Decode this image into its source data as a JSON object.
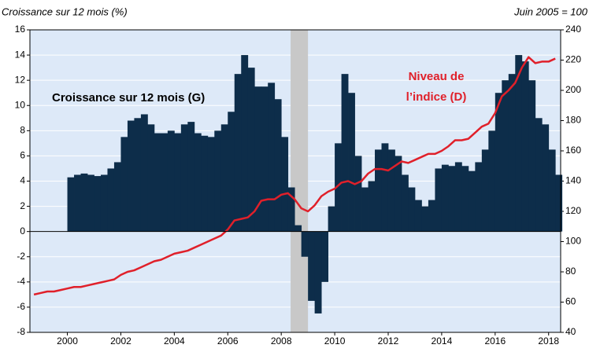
{
  "chart_data": {
    "type": "bar-line",
    "title": "Croissance sur  12 mois (%)",
    "y2_title": "Juin 2005 = 100",
    "annotations": [
      {
        "text": "Croissance sur 12 mois (G)",
        "color": "#000000"
      },
      {
        "lines": [
          "Niveau de",
          "l’indice (D)"
        ],
        "color": "#e0202a"
      }
    ],
    "shade": [
      2008.35,
      2009.0
    ],
    "xlim": [
      1998.6,
      2018.45
    ],
    "xticks": [
      2000,
      2002,
      2004,
      2006,
      2008,
      2010,
      2012,
      2014,
      2016,
      2018
    ],
    "ylim": [
      -8,
      16
    ],
    "yticks": [
      -8,
      -6,
      -4,
      -2,
      0,
      2,
      4,
      6,
      8,
      10,
      12,
      14,
      16
    ],
    "y2lim": [
      40,
      240
    ],
    "y2ticks": [
      40,
      60,
      80,
      100,
      120,
      140,
      160,
      180,
      200,
      220,
      240
    ],
    "grid": true,
    "series": [
      {
        "name": "Croissance sur 12 mois (G)",
        "type": "bar",
        "color": "#0d2d4a",
        "x": [
          2000,
          2000.25,
          2000.5,
          2000.75,
          2001,
          2001.25,
          2001.5,
          2001.75,
          2002,
          2002.25,
          2002.5,
          2002.75,
          2003,
          2003.25,
          2003.5,
          2003.75,
          2004,
          2004.25,
          2004.5,
          2004.75,
          2005,
          2005.25,
          2005.5,
          2005.75,
          2006,
          2006.25,
          2006.5,
          2006.75,
          2007,
          2007.25,
          2007.5,
          2007.75,
          2008,
          2008.25,
          2008.5,
          2008.75,
          2009,
          2009.25,
          2009.5,
          2009.75,
          2010,
          2010.25,
          2010.5,
          2010.75,
          2011,
          2011.25,
          2011.5,
          2011.75,
          2012,
          2012.25,
          2012.5,
          2012.75,
          2013,
          2013.25,
          2013.5,
          2013.75,
          2014,
          2014.25,
          2014.5,
          2014.75,
          2015,
          2015.25,
          2015.5,
          2015.75,
          2016,
          2016.25,
          2016.5,
          2016.75,
          2017,
          2017.25,
          2017.5,
          2017.75,
          2018,
          2018.25
        ],
        "values": [
          4.3,
          4.5,
          4.6,
          4.5,
          4.4,
          4.5,
          5.0,
          5.5,
          7.5,
          8.8,
          9.0,
          9.3,
          8.5,
          7.8,
          7.8,
          8.0,
          7.8,
          8.5,
          8.7,
          7.8,
          7.6,
          7.5,
          8.0,
          8.5,
          9.5,
          12.5,
          14.0,
          13.0,
          11.5,
          11.5,
          11.8,
          10.5,
          7.5,
          3.5,
          0.5,
          -2.0,
          -5.5,
          -6.5,
          -4,
          2,
          7,
          12.5,
          11,
          6,
          3.5,
          4,
          6.5,
          7,
          6.5,
          6,
          4.5,
          3.5,
          2.5,
          2,
          2.5,
          5,
          5.3,
          5.2,
          5.5,
          5.2,
          4.8,
          5.5,
          6.5,
          8,
          11,
          12,
          12.5,
          14,
          13.5,
          12,
          9,
          8.5,
          6.5,
          4.5
        ]
      },
      {
        "name": "Niveau de l’indice (D)",
        "type": "line",
        "axis": "y2",
        "color": "#e0202a",
        "x": [
          1998.75,
          1999,
          1999.25,
          1999.5,
          1999.75,
          2000,
          2000.25,
          2000.5,
          2000.75,
          2001,
          2001.25,
          2001.5,
          2001.75,
          2002,
          2002.25,
          2002.5,
          2002.75,
          2003,
          2003.25,
          2003.5,
          2003.75,
          2004,
          2004.25,
          2004.5,
          2004.75,
          2005,
          2005.25,
          2005.5,
          2005.75,
          2006,
          2006.25,
          2006.5,
          2006.75,
          2007,
          2007.25,
          2007.5,
          2007.75,
          2008,
          2008.25,
          2008.5,
          2008.75,
          2009,
          2009.25,
          2009.5,
          2009.75,
          2010,
          2010.25,
          2010.5,
          2010.75,
          2011,
          2011.25,
          2011.5,
          2011.75,
          2012,
          2012.25,
          2012.5,
          2012.75,
          2013,
          2013.25,
          2013.5,
          2013.75,
          2014,
          2014.25,
          2014.5,
          2014.75,
          2015,
          2015.25,
          2015.5,
          2015.75,
          2016,
          2016.25,
          2016.5,
          2016.75,
          2017,
          2017.25,
          2017.5,
          2017.75,
          2018,
          2018.25
        ],
        "values": [
          65,
          66,
          67,
          67,
          68,
          69,
          70,
          70,
          71,
          72,
          73,
          74,
          75,
          78,
          80,
          81,
          83,
          85,
          87,
          88,
          90,
          92,
          93,
          94,
          96,
          98,
          100,
          102,
          104,
          108,
          114,
          115,
          116,
          120,
          127,
          128,
          128,
          131,
          132,
          128,
          122,
          120,
          124,
          130,
          133,
          135,
          139,
          140,
          138,
          140,
          145,
          148,
          148,
          147,
          150,
          153,
          152,
          154,
          156,
          158,
          158,
          160,
          163,
          167,
          167,
          168,
          172,
          176,
          178,
          185,
          196,
          200,
          205,
          215,
          222,
          218,
          219,
          219,
          221
        ]
      }
    ]
  }
}
